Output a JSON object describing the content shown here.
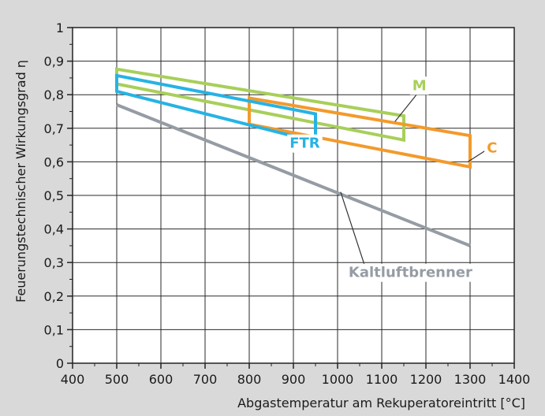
{
  "chart_data": {
    "type": "line",
    "title": "",
    "xlabel": "Abgastemperatur am Rekuperatoreintritt [°C]",
    "ylabel": "Feuerungstechnischer Wirkungsgrad η",
    "xlim": [
      400,
      1400
    ],
    "ylim": [
      0,
      1
    ],
    "x_ticks": [
      400,
      500,
      600,
      700,
      800,
      900,
      1000,
      1100,
      1200,
      1300,
      1400
    ],
    "x_tick_labels": [
      "400",
      "500",
      "600",
      "700",
      "800",
      "900",
      "1000",
      "1100",
      "1200",
      "1300",
      "1400"
    ],
    "y_ticks": [
      0,
      0.1,
      0.2,
      0.3,
      0.4,
      0.5,
      0.6,
      0.7,
      0.8,
      0.9,
      1
    ],
    "y_tick_labels": [
      "0",
      "0,1",
      "0,2",
      "0,3",
      "0,4",
      "0,5",
      "0,6",
      "0,7",
      "0,8",
      "0,9",
      "1"
    ],
    "grid": true,
    "series": [
      {
        "name": "M",
        "color": "#a8cf5a",
        "kind": "region",
        "polygon": [
          [
            500,
            0.876
          ],
          [
            1150,
            0.737
          ],
          [
            1150,
            0.665
          ],
          [
            500,
            0.832
          ]
        ]
      },
      {
        "name": "C",
        "color": "#f39a2b",
        "kind": "region",
        "polygon": [
          [
            800,
            0.79
          ],
          [
            1300,
            0.678
          ],
          [
            1300,
            0.585
          ],
          [
            800,
            0.712
          ]
        ]
      },
      {
        "name": "FTR",
        "color": "#26b3e4",
        "kind": "region",
        "polygon": [
          [
            500,
            0.857
          ],
          [
            950,
            0.743
          ],
          [
            950,
            0.66
          ],
          [
            500,
            0.81
          ]
        ]
      },
      {
        "name": "Kaltluftbrenner",
        "color": "#959ca4",
        "kind": "line",
        "x": [
          500,
          1300
        ],
        "y": [
          0.77,
          0.35
        ]
      }
    ],
    "annotations": [
      {
        "text": "M",
        "color": "#a8cf5a",
        "anchor": [
          1130,
          0.72
        ]
      },
      {
        "text": "C",
        "color": "#f39a2b",
        "anchor": [
          1295,
          0.6
        ]
      },
      {
        "text": "FTR",
        "color": "#26b3e4",
        "anchor": [
          945,
          0.665
        ]
      },
      {
        "text": "Kaltluftbrenner",
        "color": "#959ca4",
        "anchor": [
          1007,
          0.51
        ]
      }
    ]
  }
}
